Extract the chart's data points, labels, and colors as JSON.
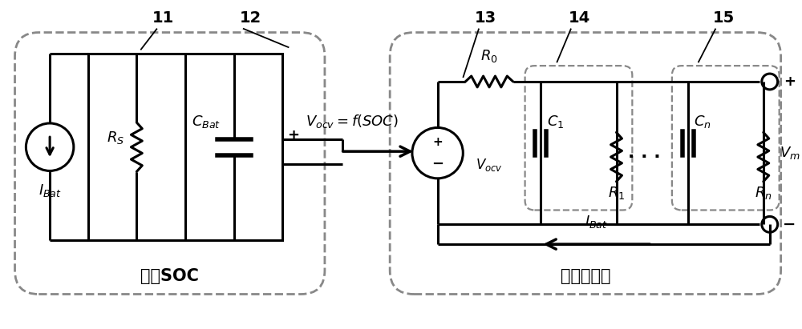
{
  "fig_width": 10.0,
  "fig_height": 4.11,
  "dpi": 100,
  "bg_color": "#ffffff",
  "line_color": "#000000",
  "dash_box_color": "#888888",
  "line_width": 2.2,
  "dash_lw": 2.0,
  "labels": {
    "11": "11",
    "12": "12",
    "13": "13",
    "14": "14",
    "15": "15",
    "RS": "$R_S$",
    "CBat": "$C_{Bat}$",
    "IBat_left": "$I_{Bat}$",
    "Vocv_eq": "$V_{ocv}=f(SOC)$",
    "R0": "$R_0$",
    "C1": "$C_1$",
    "R1": "$R_1$",
    "Cn": "$C_n$",
    "Rn": "$R_n$",
    "Vocv": "$V_{ocv}$",
    "Vm": "$V_m$",
    "IBat_right": "$I_{Bat}$",
    "plus": "+",
    "minus": "−",
    "box1_label": "电池SOC",
    "box2_label": "电池端电压",
    "dots": ". . ."
  }
}
